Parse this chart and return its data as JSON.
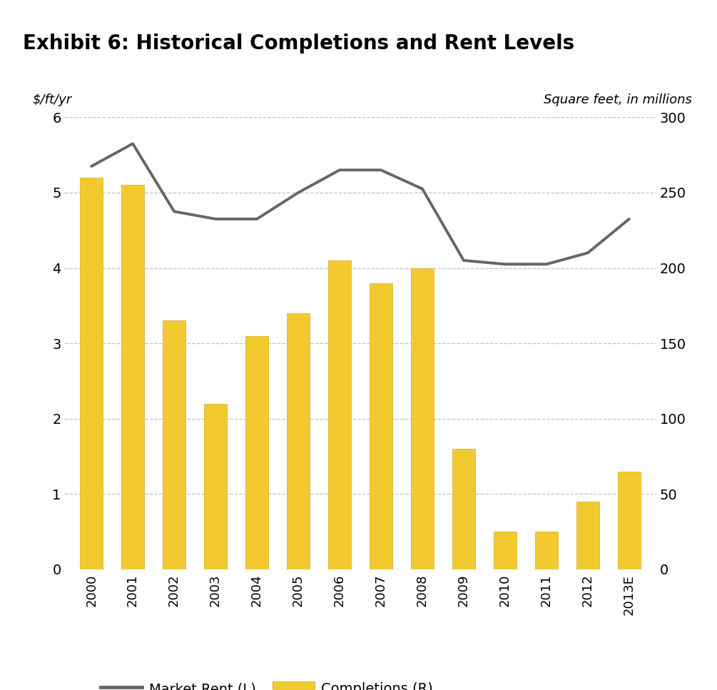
{
  "title": "Exhibit 6: Historical Completions and Rent Levels",
  "ylabel_left": "$/ft/yr",
  "ylabel_right": "Square feet, in millions",
  "years": [
    "2000",
    "2001",
    "2002",
    "2003",
    "2004",
    "2005",
    "2006",
    "2007",
    "2008",
    "2009",
    "2010",
    "2011",
    "2012",
    "2013E"
  ],
  "market_rent": [
    5.35,
    5.65,
    4.75,
    4.65,
    4.65,
    5.0,
    5.3,
    5.3,
    5.05,
    4.1,
    4.05,
    4.05,
    4.2,
    4.65
  ],
  "completions": [
    260,
    255,
    165,
    110,
    155,
    170,
    205,
    190,
    200,
    80,
    25,
    25,
    45,
    65
  ],
  "bar_color": "#F2CA30",
  "bar_edge_color": "#C8A000",
  "line_color": "#666666",
  "ylim_left": [
    0,
    6
  ],
  "ylim_right": [
    0,
    300
  ],
  "yticks_left": [
    0,
    1,
    2,
    3,
    4,
    5,
    6
  ],
  "yticks_right": [
    0,
    50,
    100,
    150,
    200,
    250,
    300
  ],
  "title_bg_color": "#d4d4d4",
  "separator_color": "#aaaaaa",
  "background_color": "#ffffff",
  "legend_line_label": "Market Rent (L)",
  "legend_bar_label": "Completions (R)",
  "fig_width": 10.05,
  "fig_height": 9.67,
  "dpi": 100
}
